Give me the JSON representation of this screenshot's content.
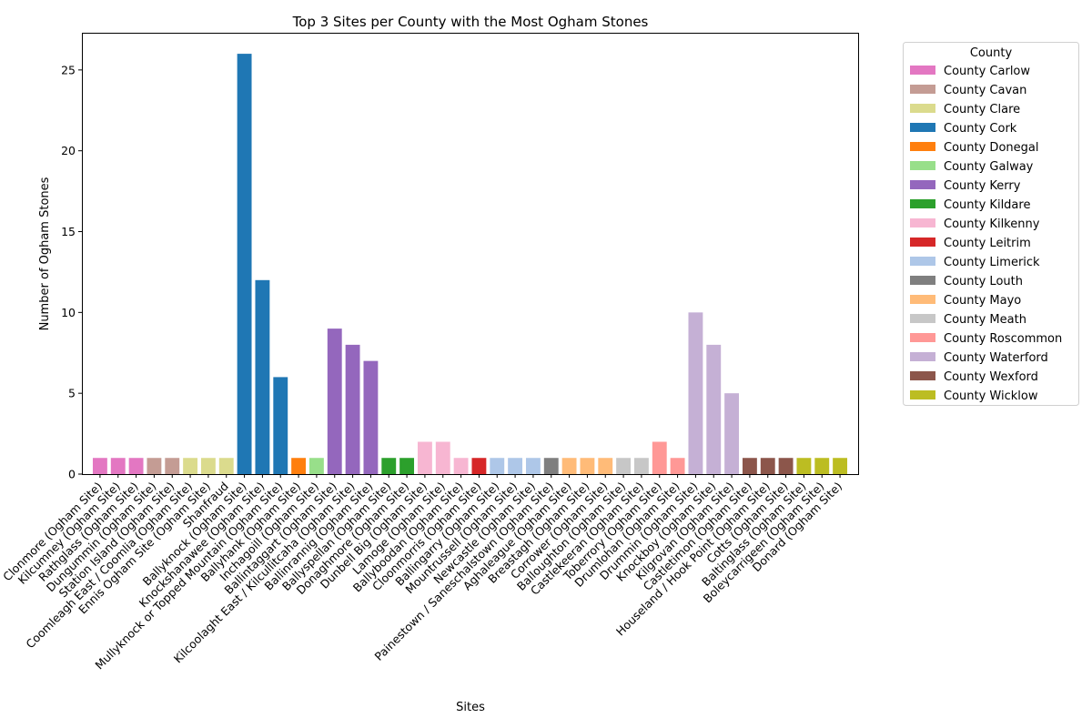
{
  "chart_data": {
    "type": "bar",
    "title": "Top 3 Sites per County with the Most Ogham Stones",
    "xlabel": "Sites",
    "ylabel": "Number of Ogham Stones",
    "ylim": [
      0,
      27.3
    ],
    "yticks": [
      0,
      5,
      10,
      15,
      20,
      25
    ],
    "grid": false,
    "legend": {
      "title": "County",
      "placement": "outside-right"
    },
    "series": [
      {
        "name": "County Carlow",
        "color": "#e377c2",
        "sites": [
          "Clonmore (Ogham Site)",
          "Kilcumney (Ogham Site)",
          "Rathglass (Ogham Site)"
        ],
        "values": [
          1,
          1,
          1
        ]
      },
      {
        "name": "County Cavan",
        "color": "#c49c94",
        "sites": [
          "Dungummin (Ogham Site)",
          "Station Island (Ogham Site)"
        ],
        "values": [
          1,
          1
        ]
      },
      {
        "name": "County Clare",
        "color": "#dbdb8d",
        "sites": [
          "Coomleagh East / Coomlia (Ogham Site)",
          "Ennis Ogham Site (Ogham Site)",
          "Shanfraud"
        ],
        "values": [
          1,
          1,
          1
        ]
      },
      {
        "name": "County Cork",
        "color": "#1f77b4",
        "sites": [
          "Ballyknock (Ogham Site)",
          "Knockshanawee (Ogham Site)",
          "Mullyknock or Topped Mountain (Ogham Site)"
        ],
        "values": [
          26,
          12,
          6
        ]
      },
      {
        "name": "County Donegal",
        "color": "#ff7f0e",
        "sites": [
          "Ballyhank (Ogham Site)"
        ],
        "values": [
          1
        ]
      },
      {
        "name": "County Galway",
        "color": "#98df8a",
        "sites": [
          "Inchagoill (Ogham Site)"
        ],
        "values": [
          1
        ]
      },
      {
        "name": "County Kerry",
        "color": "#9467bd",
        "sites": [
          "Ballintaggart (Ogham Site)",
          "Kilcoolaght East / Kilcullitcaha (Ogham Site)",
          "Ballinrannig (Ogham Site)"
        ],
        "values": [
          9,
          8,
          7
        ]
      },
      {
        "name": "County Kildare",
        "color": "#2ca02c",
        "sites": [
          "Ballyspellan (Ogham Site)",
          "Donaghmore (Ogham Site)"
        ],
        "values": [
          1,
          1
        ]
      },
      {
        "name": "County Kilkenny",
        "color": "#f7b6d2",
        "sites": [
          "Dunbell Big (Ogham Site)",
          "Lamoge (Ogham Site)",
          "Ballyboodan (Ogham Site)"
        ],
        "values": [
          2,
          2,
          1
        ]
      },
      {
        "name": "County Leitrim",
        "color": "#d62728",
        "sites": [
          "Cloonmorris (Ogham Site)"
        ],
        "values": [
          1
        ]
      },
      {
        "name": "County Limerick",
        "color": "#aec7e8",
        "sites": [
          "Ballingarry (Ogham Site)",
          "Mountrussell (Ogham Site)",
          "Newcastle (Ogham Site)"
        ],
        "values": [
          1,
          1,
          1
        ]
      },
      {
        "name": "County Louth",
        "color": "#7f7f7f",
        "sites": [
          "Painestown / Saneschalstown (Ogham Site)"
        ],
        "values": [
          1
        ]
      },
      {
        "name": "County Mayo",
        "color": "#ffbb78",
        "sites": [
          "Aghaleague (Ogham Site)",
          "Breastagh (Ogham Site)",
          "Corrower (Ogham Site)"
        ],
        "values": [
          1,
          1,
          1
        ]
      },
      {
        "name": "County Meath",
        "color": "#c7c7c7",
        "sites": [
          "Balloughton (Ogham Site)",
          "Castlekeeran (Ogham Site)"
        ],
        "values": [
          1,
          1
        ]
      },
      {
        "name": "County Roscommon",
        "color": "#ff9896",
        "sites": [
          "Toberrory (Ogham Site)",
          "Drumlohan (Ogham Site)"
        ],
        "values": [
          2,
          1
        ]
      },
      {
        "name": "County Waterford",
        "color": "#c5b0d5",
        "sites": [
          "Drummin (Ogham Site)",
          "Knockboy (Ogham Site)",
          "Kilgrovan (Ogham Site)"
        ],
        "values": [
          10,
          8,
          5
        ]
      },
      {
        "name": "County Wexford",
        "color": "#8c564b",
        "sites": [
          "Castletimon (Ogham Site)",
          "Houseland / Hook Point (Ogham Site)",
          "Cotts (Ogham Site)"
        ],
        "values": [
          1,
          1,
          1
        ]
      },
      {
        "name": "County Wicklow",
        "color": "#bcbd22",
        "sites": [
          "Baltinglass (Ogham Site)",
          "Boleycarrigeen (Ogham Site)",
          "Donard (Ogham Site)"
        ],
        "values": [
          1,
          1,
          1
        ]
      }
    ]
  }
}
